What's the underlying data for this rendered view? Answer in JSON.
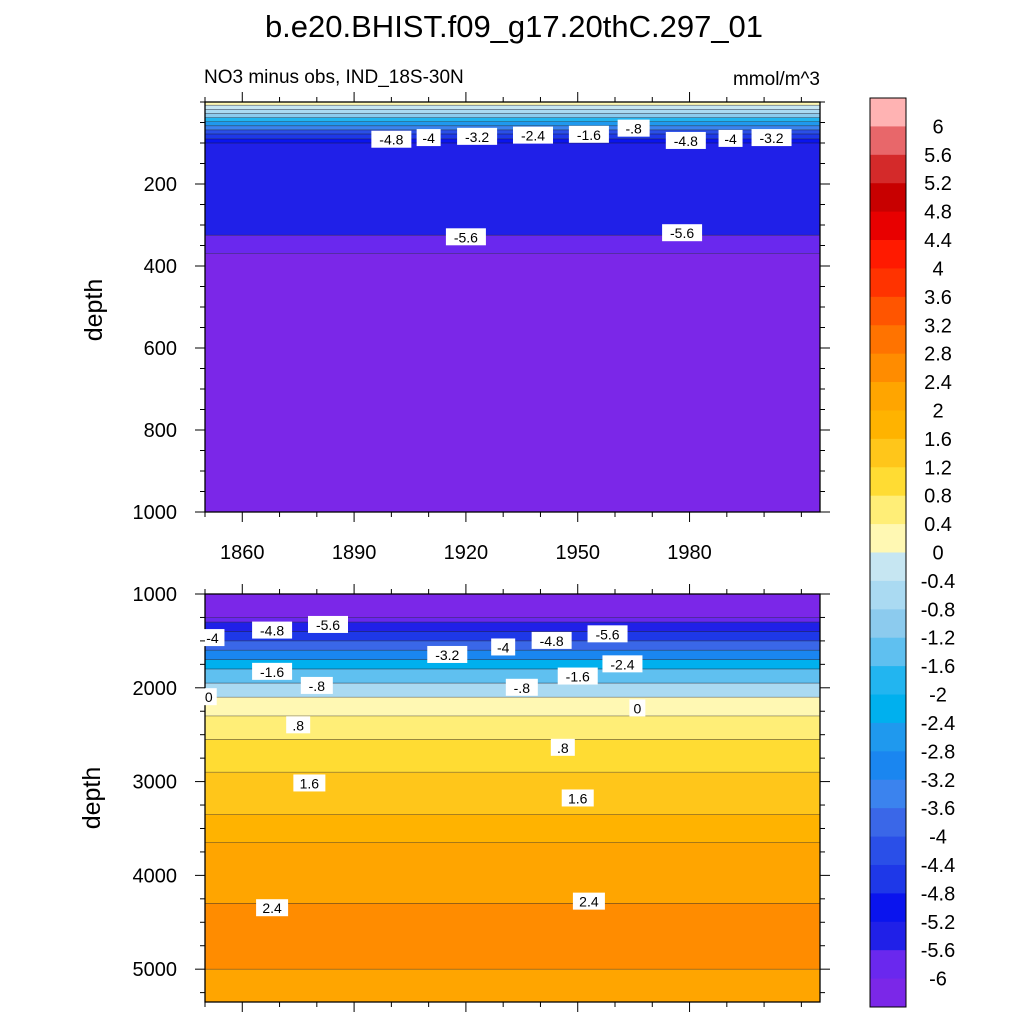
{
  "chart_data": [
    {
      "type": "heatmap",
      "panel": "upper",
      "title": "b.e20.BHIST.f09_g17.20thC.297_01",
      "left_string": "NO3 minus obs, IND_18S-30N",
      "right_string": "mmol/m^3",
      "ylabel": "depth",
      "xlim": [
        1850,
        2015
      ],
      "ylim": [
        1000,
        0
      ],
      "x_ticks": [
        1860,
        1890,
        1920,
        1950,
        1980
      ],
      "y_ticks": [
        200,
        400,
        600,
        800,
        1000
      ],
      "bands_depth_to_value": [
        {
          "depth": 0,
          "value": 0.2
        },
        {
          "depth": 8,
          "value": -0.2
        },
        {
          "depth": 18,
          "value": -0.6
        },
        {
          "depth": 28,
          "value": -1.2
        },
        {
          "depth": 38,
          "value": -2.0
        },
        {
          "depth": 48,
          "value": -2.8
        },
        {
          "depth": 58,
          "value": -3.6
        },
        {
          "depth": 68,
          "value": -4.2
        },
        {
          "depth": 78,
          "value": -4.6
        },
        {
          "depth": 90,
          "value": -5.0
        },
        {
          "depth": 100,
          "value": -5.4
        },
        {
          "depth": 325,
          "value": -5.7
        },
        {
          "depth": 370,
          "value": -6.1
        },
        {
          "depth": 1000,
          "value": -6.1
        }
      ],
      "contour_labels": [
        {
          "x": 1900,
          "depth": 92,
          "text": "-4.8"
        },
        {
          "x": 1910,
          "depth": 88,
          "text": "-4"
        },
        {
          "x": 1923,
          "depth": 85,
          "text": "-3.2"
        },
        {
          "x": 1938,
          "depth": 82,
          "text": "-2.4"
        },
        {
          "x": 1953,
          "depth": 80,
          "text": "-1.6"
        },
        {
          "x": 1965,
          "depth": 65,
          "text": "-.8"
        },
        {
          "x": 1979,
          "depth": 95,
          "text": "-4.8"
        },
        {
          "x": 1991,
          "depth": 90,
          "text": "-4"
        },
        {
          "x": 2002,
          "depth": 88,
          "text": "-3.2"
        },
        {
          "x": 1920,
          "depth": 330,
          "text": "-5.6"
        },
        {
          "x": 1978,
          "depth": 320,
          "text": "-5.6"
        }
      ]
    },
    {
      "type": "heatmap",
      "panel": "lower",
      "ylabel": "depth",
      "xlim": [
        1850,
        2015
      ],
      "ylim": [
        5350,
        1000
      ],
      "y_ticks": [
        1000,
        2000,
        3000,
        4000,
        5000
      ],
      "bands_depth_to_value": [
        {
          "depth": 1000,
          "value": -6.2
        },
        {
          "depth": 1250,
          "value": -6.0
        },
        {
          "depth": 1300,
          "value": -5.4
        },
        {
          "depth": 1400,
          "value": -4.8
        },
        {
          "depth": 1500,
          "value": -4.0
        },
        {
          "depth": 1600,
          "value": -3.2
        },
        {
          "depth": 1700,
          "value": -2.4
        },
        {
          "depth": 1800,
          "value": -1.6
        },
        {
          "depth": 1950,
          "value": -0.8
        },
        {
          "depth": 2100,
          "value": 0.2
        },
        {
          "depth": 2300,
          "value": 0.6
        },
        {
          "depth": 2550,
          "value": 1.0
        },
        {
          "depth": 2900,
          "value": 1.4
        },
        {
          "depth": 3350,
          "value": 1.8
        },
        {
          "depth": 3650,
          "value": 2.2
        },
        {
          "depth": 4300,
          "value": 2.6
        },
        {
          "depth": 5000,
          "value": 2.2
        },
        {
          "depth": 5350,
          "value": 2.2
        }
      ],
      "contour_labels": [
        {
          "x": 1852,
          "depth": 1470,
          "text": "-4"
        },
        {
          "x": 1868,
          "depth": 1390,
          "text": "-4.8"
        },
        {
          "x": 1883,
          "depth": 1330,
          "text": "-5.6"
        },
        {
          "x": 1868,
          "depth": 1830,
          "text": "-1.6"
        },
        {
          "x": 1880,
          "depth": 1980,
          "text": "-.8"
        },
        {
          "x": 1851,
          "depth": 2100,
          "text": "0"
        },
        {
          "x": 1875,
          "depth": 2400,
          "text": ".8"
        },
        {
          "x": 1878,
          "depth": 3020,
          "text": "1.6"
        },
        {
          "x": 1868,
          "depth": 4350,
          "text": "2.4"
        },
        {
          "x": 1915,
          "depth": 1650,
          "text": "-3.2"
        },
        {
          "x": 1930,
          "depth": 1570,
          "text": "-4"
        },
        {
          "x": 1943,
          "depth": 1500,
          "text": "-4.8"
        },
        {
          "x": 1958,
          "depth": 1430,
          "text": "-5.6"
        },
        {
          "x": 1935,
          "depth": 2000,
          "text": "-.8"
        },
        {
          "x": 1950,
          "depth": 1880,
          "text": "-1.6"
        },
        {
          "x": 1962,
          "depth": 1750,
          "text": "-2.4"
        },
        {
          "x": 1966,
          "depth": 2220,
          "text": "0"
        },
        {
          "x": 1946,
          "depth": 2640,
          "text": ".8"
        },
        {
          "x": 1950,
          "depth": 3180,
          "text": "1.6"
        },
        {
          "x": 1953,
          "depth": 4280,
          "text": "2.4"
        }
      ]
    }
  ],
  "colorbar": {
    "labels": [
      "6",
      "5.6",
      "5.2",
      "4.8",
      "4.4",
      "4",
      "3.6",
      "3.2",
      "2.8",
      "2.4",
      "2",
      "1.6",
      "1.2",
      "0.8",
      "0.4",
      "0",
      "-0.4",
      "-0.8",
      "-1.2",
      "-1.6",
      "-2",
      "-2.4",
      "-2.8",
      "-3.2",
      "-3.6",
      "-4",
      "-4.4",
      "-4.8",
      "-5.2",
      "-5.6",
      "-6"
    ],
    "colors_top_to_bottom": [
      "#ffb3b3",
      "#e8676a",
      "#d42a2a",
      "#c80000",
      "#e80000",
      "#ff1a00",
      "#ff3300",
      "#ff5500",
      "#ff7300",
      "#ff8c00",
      "#ffa500",
      "#ffb300",
      "#ffc61a",
      "#ffdc33",
      "#ffee77",
      "#fff8b3",
      "#c6e6f2",
      "#aadaf2",
      "#8ccbee",
      "#5fc0f0",
      "#22b5f0",
      "#00b0ee",
      "#1f99ee",
      "#1a86f0",
      "#3b83ee",
      "#3a67e8",
      "#2a4fe8",
      "#1e38e8",
      "#0a14ee",
      "#2020e8",
      "#6a28ee",
      "#7b27e8"
    ]
  }
}
